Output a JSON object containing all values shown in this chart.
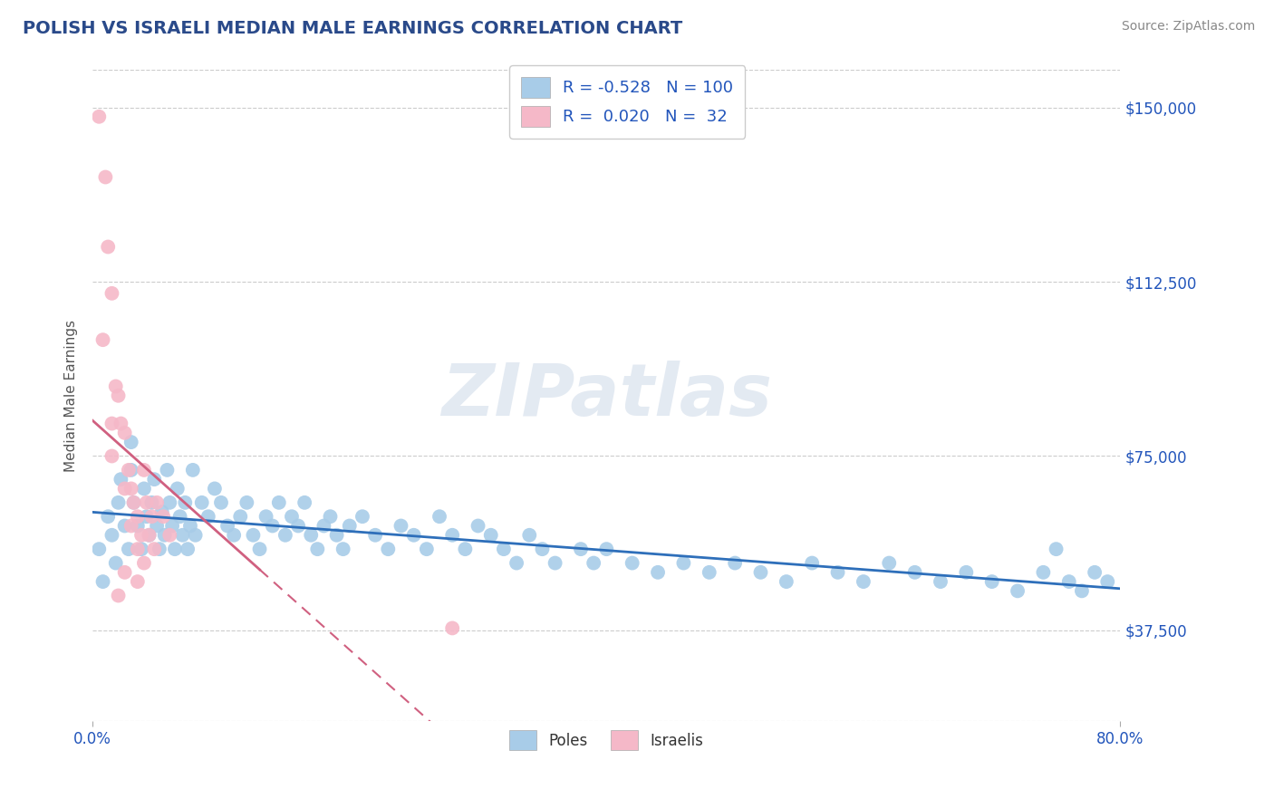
{
  "title": "POLISH VS ISRAELI MEDIAN MALE EARNINGS CORRELATION CHART",
  "source": "Source: ZipAtlas.com",
  "ylabel": "Median Male Earnings",
  "xlim": [
    0,
    0.8
  ],
  "ylim": [
    18000,
    158000
  ],
  "yticks": [
    37500,
    75000,
    112500,
    150000
  ],
  "ytick_labels": [
    "$37,500",
    "$75,000",
    "$112,500",
    "$150,000"
  ],
  "watermark_text": "ZIPatlas",
  "legend_r_blue": "-0.528",
  "legend_n_blue": "100",
  "legend_r_pink": " 0.020",
  "legend_n_pink": " 32",
  "blue_color": "#a8cce8",
  "pink_color": "#f5b8c8",
  "blue_line_color": "#2e6fba",
  "pink_line_color": "#d06080",
  "title_color": "#2a4a8a",
  "axis_label_color": "#555555",
  "tick_label_color": "#2255bb",
  "grid_color": "#cccccc",
  "background_color": "#ffffff",
  "blue_scatter_x": [
    0.005,
    0.008,
    0.012,
    0.015,
    0.018,
    0.02,
    0.022,
    0.025,
    0.028,
    0.03,
    0.032,
    0.035,
    0.038,
    0.04,
    0.042,
    0.044,
    0.046,
    0.048,
    0.05,
    0.052,
    0.054,
    0.056,
    0.058,
    0.06,
    0.062,
    0.064,
    0.066,
    0.068,
    0.07,
    0.072,
    0.074,
    0.076,
    0.078,
    0.08,
    0.085,
    0.09,
    0.095,
    0.1,
    0.105,
    0.11,
    0.115,
    0.12,
    0.125,
    0.13,
    0.135,
    0.14,
    0.145,
    0.15,
    0.155,
    0.16,
    0.165,
    0.17,
    0.175,
    0.18,
    0.185,
    0.19,
    0.195,
    0.2,
    0.21,
    0.22,
    0.23,
    0.24,
    0.25,
    0.26,
    0.27,
    0.28,
    0.29,
    0.3,
    0.31,
    0.32,
    0.33,
    0.34,
    0.35,
    0.36,
    0.38,
    0.39,
    0.4,
    0.42,
    0.44,
    0.46,
    0.48,
    0.5,
    0.52,
    0.54,
    0.56,
    0.58,
    0.6,
    0.62,
    0.64,
    0.66,
    0.68,
    0.7,
    0.72,
    0.74,
    0.75,
    0.76,
    0.77,
    0.78,
    0.79,
    0.03
  ],
  "blue_scatter_y": [
    55000,
    48000,
    62000,
    58000,
    52000,
    65000,
    70000,
    60000,
    55000,
    72000,
    65000,
    60000,
    55000,
    68000,
    62000,
    58000,
    65000,
    70000,
    60000,
    55000,
    63000,
    58000,
    72000,
    65000,
    60000,
    55000,
    68000,
    62000,
    58000,
    65000,
    55000,
    60000,
    72000,
    58000,
    65000,
    62000,
    68000,
    65000,
    60000,
    58000,
    62000,
    65000,
    58000,
    55000,
    62000,
    60000,
    65000,
    58000,
    62000,
    60000,
    65000,
    58000,
    55000,
    60000,
    62000,
    58000,
    55000,
    60000,
    62000,
    58000,
    55000,
    60000,
    58000,
    55000,
    62000,
    58000,
    55000,
    60000,
    58000,
    55000,
    52000,
    58000,
    55000,
    52000,
    55000,
    52000,
    55000,
    52000,
    50000,
    52000,
    50000,
    52000,
    50000,
    48000,
    52000,
    50000,
    48000,
    52000,
    50000,
    48000,
    50000,
    48000,
    46000,
    50000,
    55000,
    48000,
    46000,
    50000,
    48000,
    78000
  ],
  "pink_scatter_x": [
    0.005,
    0.01,
    0.012,
    0.015,
    0.018,
    0.02,
    0.022,
    0.025,
    0.028,
    0.03,
    0.032,
    0.035,
    0.038,
    0.04,
    0.042,
    0.044,
    0.046,
    0.048,
    0.02,
    0.025,
    0.008,
    0.015,
    0.03,
    0.035,
    0.04,
    0.05,
    0.055,
    0.06,
    0.025,
    0.015,
    0.035,
    0.28
  ],
  "pink_scatter_y": [
    148000,
    135000,
    120000,
    110000,
    90000,
    88000,
    82000,
    80000,
    72000,
    68000,
    65000,
    62000,
    58000,
    72000,
    65000,
    58000,
    62000,
    55000,
    45000,
    50000,
    100000,
    75000,
    60000,
    55000,
    52000,
    65000,
    62000,
    58000,
    68000,
    82000,
    48000,
    38000
  ]
}
